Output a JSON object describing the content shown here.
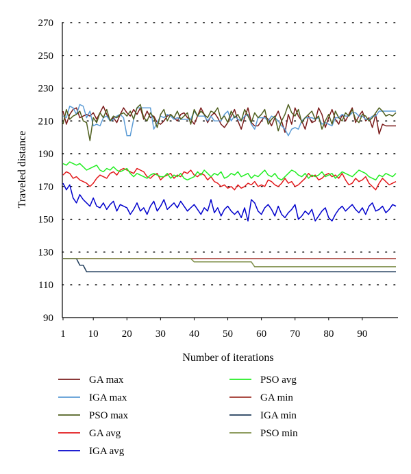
{
  "chart_data": {
    "type": "line",
    "xlabel": "Number of iterations",
    "ylabel": "Traveled distance",
    "xlim": [
      1,
      100
    ],
    "ylim": [
      90,
      270
    ],
    "x_ticks": [
      1,
      10,
      20,
      30,
      40,
      50,
      60,
      70,
      80,
      90
    ],
    "y_ticks": [
      90,
      110,
      130,
      150,
      170,
      190,
      210,
      230,
      250,
      270
    ],
    "grid": "dotted horizontal",
    "legend_position": "bottom, two columns",
    "series": [
      {
        "name": "GA max",
        "color": "#7a1b1b",
        "values": [
          216,
          208,
          214,
          217,
          218,
          212,
          213,
          214,
          213,
          215,
          211,
          215,
          219,
          214,
          210,
          212,
          209,
          214,
          218,
          215,
          213,
          217,
          214,
          218,
          211,
          216,
          212,
          213,
          209,
          208,
          210,
          213,
          214,
          212,
          210,
          214,
          215,
          212,
          211,
          208,
          213,
          218,
          214,
          209,
          213,
          215,
          212,
          208,
          206,
          209,
          213,
          217,
          210,
          205,
          212,
          218,
          209,
          207,
          207,
          210,
          213,
          211,
          207,
          212,
          216,
          210,
          203,
          214,
          208,
          218,
          213,
          210,
          205,
          213,
          209,
          210,
          218,
          214,
          206,
          212,
          217,
          211,
          208,
          214,
          210,
          214,
          218,
          209,
          213,
          216,
          210,
          212,
          206,
          214,
          202,
          208,
          207,
          207,
          207,
          207
        ]
      },
      {
        "name": "IGA max",
        "color": "#5b9bd5",
        "values": [
          213,
          212,
          219,
          218,
          214,
          220,
          219,
          212,
          216,
          207,
          208,
          207,
          212,
          213,
          210,
          211,
          213,
          214,
          212,
          201,
          201,
          211,
          218,
          218,
          218,
          218,
          218,
          205,
          209,
          213,
          212,
          214,
          213,
          211,
          212,
          211,
          211,
          211,
          211,
          216,
          213,
          213,
          213,
          210,
          213,
          210,
          210,
          210,
          214,
          216,
          210,
          213,
          211,
          210,
          213,
          214,
          208,
          205,
          212,
          212,
          212,
          210,
          213,
          212,
          210,
          207,
          205,
          201,
          205,
          206,
          205,
          210,
          212,
          212,
          212,
          211,
          212,
          208,
          209,
          208,
          207,
          212,
          212,
          214,
          213,
          213,
          215,
          215,
          213,
          213,
          211,
          211,
          213,
          213,
          216,
          216,
          216,
          216,
          216,
          216
        ]
      },
      {
        "name": "PSO max",
        "color": "#4f5f1f",
        "values": [
          208,
          217,
          211,
          213,
          214,
          216,
          210,
          209,
          198,
          212,
          209,
          215,
          212,
          217,
          210,
          213,
          212,
          214,
          215,
          213,
          216,
          211,
          218,
          220,
          212,
          210,
          215,
          212,
          206,
          214,
          217,
          210,
          214,
          212,
          216,
          211,
          213,
          215,
          208,
          217,
          213,
          216,
          214,
          212,
          216,
          215,
          218,
          211,
          213,
          209,
          216,
          212,
          214,
          210,
          217,
          213,
          209,
          215,
          212,
          214,
          217,
          208,
          211,
          213,
          204,
          210,
          214,
          220,
          215,
          213,
          217,
          209,
          212,
          214,
          216,
          211,
          213,
          205,
          210,
          214,
          208,
          216,
          212,
          210,
          215,
          213,
          217,
          211,
          209,
          214,
          213,
          210,
          212,
          215,
          218,
          216,
          213,
          214,
          213,
          215
        ]
      },
      {
        "name": "GA avg",
        "color": "#e31a1c",
        "values": [
          177,
          179,
          178,
          175,
          176,
          174,
          173,
          172,
          170,
          172,
          175,
          177,
          176,
          175,
          178,
          179,
          177,
          180,
          181,
          180,
          179,
          178,
          181,
          180,
          179,
          176,
          175,
          177,
          178,
          174,
          176,
          177,
          178,
          175,
          177,
          176,
          179,
          178,
          180,
          177,
          176,
          178,
          177,
          174,
          176,
          173,
          172,
          170,
          171,
          169,
          170,
          168,
          171,
          169,
          170,
          172,
          171,
          173,
          170,
          171,
          170,
          174,
          173,
          171,
          170,
          172,
          175,
          172,
          173,
          170,
          171,
          173,
          175,
          178,
          176,
          177,
          174,
          175,
          177,
          178,
          176,
          177,
          175,
          178,
          174,
          171,
          172,
          175,
          173,
          174,
          176,
          172,
          170,
          168,
          172,
          175,
          173,
          171,
          172,
          173
        ]
      },
      {
        "name": "IGA avg",
        "color": "#0000cc",
        "values": [
          172,
          168,
          171,
          163,
          160,
          165,
          162,
          160,
          158,
          163,
          158,
          157,
          160,
          156,
          159,
          161,
          155,
          159,
          158,
          157,
          153,
          156,
          160,
          155,
          157,
          153,
          158,
          161,
          155,
          158,
          162,
          156,
          158,
          160,
          157,
          161,
          158,
          155,
          157,
          159,
          156,
          153,
          157,
          155,
          162,
          154,
          157,
          152,
          156,
          158,
          155,
          153,
          155,
          151,
          157,
          149,
          162,
          160,
          155,
          153,
          157,
          159,
          156,
          152,
          158,
          153,
          151,
          154,
          156,
          159,
          150,
          152,
          155,
          153,
          156,
          149,
          152,
          155,
          157,
          151,
          149,
          153,
          156,
          158,
          155,
          157,
          159,
          156,
          154,
          157,
          153,
          158,
          160,
          155,
          156,
          158,
          154,
          156,
          159,
          158
        ]
      },
      {
        "name": "PSO avg",
        "color": "#22ee22",
        "values": [
          184,
          183,
          185,
          184,
          183,
          184,
          182,
          180,
          181,
          182,
          183,
          180,
          179,
          181,
          180,
          182,
          180,
          179,
          180,
          181,
          178,
          176,
          178,
          177,
          176,
          175,
          177,
          178,
          177,
          176,
          176,
          178,
          175,
          177,
          176,
          178,
          175,
          174,
          175,
          176,
          179,
          177,
          180,
          178,
          176,
          178,
          177,
          179,
          175,
          176,
          178,
          177,
          179,
          176,
          177,
          178,
          175,
          177,
          176,
          178,
          180,
          177,
          176,
          178,
          175,
          174,
          176,
          178,
          180,
          179,
          177,
          176,
          178,
          175,
          177,
          176,
          177,
          179,
          176,
          177,
          178,
          175,
          177,
          179,
          178,
          177,
          176,
          178,
          180,
          179,
          178,
          176,
          175,
          174,
          177,
          176,
          178,
          177,
          176,
          178
        ]
      },
      {
        "name": "GA min",
        "color": "#a0342c",
        "values": [
          126,
          126,
          126,
          126,
          126,
          126,
          126,
          126,
          126,
          126,
          126,
          126,
          126,
          126,
          126,
          126,
          126,
          126,
          126,
          126,
          126,
          126,
          126,
          126,
          126,
          126,
          126,
          126,
          126,
          126,
          126,
          126,
          126,
          126,
          126,
          126,
          126,
          126,
          126,
          126,
          126,
          126,
          126,
          126,
          126,
          126,
          126,
          126,
          126,
          126,
          126,
          126,
          126,
          126,
          126,
          126,
          126,
          126,
          126,
          126,
          126,
          126,
          126,
          126,
          126,
          126,
          126,
          126,
          126,
          126,
          126,
          126,
          126,
          126,
          126,
          126,
          126,
          126,
          126,
          126,
          126,
          126,
          126,
          126,
          126,
          126,
          126,
          126,
          126,
          126,
          126,
          126,
          126,
          126,
          126,
          126,
          126,
          126,
          126,
          126
        ]
      },
      {
        "name": "IGA min",
        "color": "#1f3b5a",
        "values": [
          126,
          126,
          126,
          126,
          126,
          122,
          122,
          118,
          118,
          118,
          118,
          118,
          118,
          118,
          118,
          118,
          118,
          118,
          118,
          118,
          118,
          118,
          118,
          118,
          118,
          118,
          118,
          118,
          118,
          118,
          118,
          118,
          118,
          118,
          118,
          118,
          118,
          118,
          118,
          118,
          118,
          118,
          118,
          118,
          118,
          118,
          118,
          118,
          118,
          118,
          118,
          118,
          118,
          118,
          118,
          118,
          118,
          118,
          118,
          118,
          118,
          118,
          118,
          118,
          118,
          118,
          118,
          118,
          118,
          118,
          118,
          118,
          118,
          118,
          118,
          118,
          118,
          118,
          118,
          118,
          118,
          118,
          118,
          118,
          118,
          118,
          118,
          118,
          118,
          118,
          118,
          118,
          118,
          118,
          118,
          118,
          118,
          118,
          118,
          118
        ]
      },
      {
        "name": "PSO min",
        "color": "#7f8f4a",
        "values": [
          126,
          126,
          126,
          126,
          126,
          126,
          126,
          126,
          126,
          126,
          126,
          126,
          126,
          126,
          126,
          126,
          126,
          126,
          126,
          126,
          126,
          126,
          126,
          126,
          126,
          126,
          126,
          126,
          126,
          126,
          126,
          126,
          126,
          126,
          126,
          126,
          126,
          126,
          126,
          124,
          124,
          124,
          124,
          124,
          124,
          124,
          124,
          124,
          124,
          124,
          124,
          124,
          124,
          124,
          124,
          124,
          124,
          121,
          121,
          121,
          121,
          121,
          121,
          121,
          121,
          121,
          121,
          121,
          121,
          121,
          121,
          121,
          121,
          121,
          121,
          121,
          121,
          121,
          121,
          121,
          121,
          121,
          121,
          121,
          121,
          121,
          121,
          121,
          121,
          121,
          121,
          121,
          121,
          121,
          121,
          121,
          121,
          121,
          121,
          121
        ]
      }
    ]
  }
}
